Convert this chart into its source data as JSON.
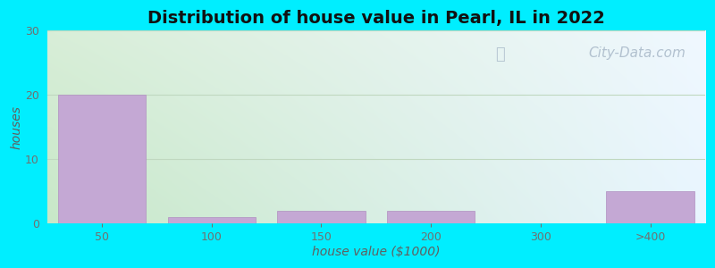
{
  "title": "Distribution of house value in Pearl, IL in 2022",
  "xlabel": "house value ($1000)",
  "ylabel": "houses",
  "categories": [
    "50",
    "100",
    "150",
    "200",
    "300",
    ">400"
  ],
  "values": [
    20,
    1,
    2,
    2,
    0,
    5
  ],
  "bar_color": "#c4a8d4",
  "bar_edgecolor": "#b090c0",
  "ylim": [
    0,
    30
  ],
  "yticks": [
    0,
    10,
    20,
    30
  ],
  "background_outer": "#00eeff",
  "grad_top_left": "#d8eed8",
  "grad_top_right": "#f0f8ff",
  "grad_bottom_left": "#c8e8c8",
  "grad_bottom_right": "#e8f5ff",
  "title_fontsize": 14,
  "axis_label_fontsize": 10,
  "tick_fontsize": 9,
  "watermark_text": "City-Data.com",
  "watermark_color": "#a8b8c8",
  "watermark_fontsize": 11,
  "grid_color": "#c0d8c0",
  "tick_color": "#707070",
  "label_color": "#606060"
}
